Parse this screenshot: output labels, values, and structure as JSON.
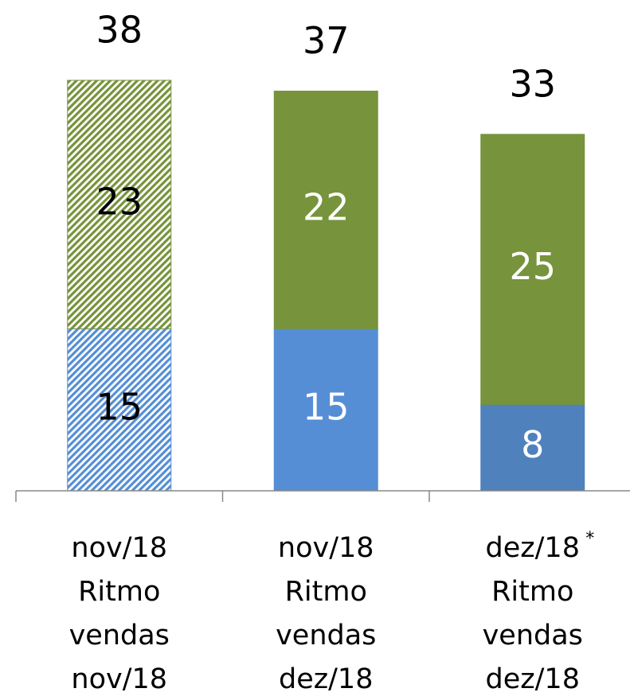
{
  "chart_data": {
    "type": "stacked_bar",
    "categories": [
      [
        "nov/18",
        "Ritmo",
        "vendas",
        "nov/18"
      ],
      [
        "nov/18",
        "Ritmo",
        "vendas",
        "dez/18"
      ],
      [
        "dez/18",
        "Ritmo",
        "vendas",
        "dez/18"
      ]
    ],
    "category_marks": [
      null,
      null,
      "*"
    ],
    "series": [
      {
        "colors": [
          "#558ed5",
          "#558ed5",
          "#4f81bd"
        ],
        "values": [
          15,
          15,
          8
        ]
      },
      {
        "colors": [
          "#77933c",
          "#77933c",
          "#77933c"
        ],
        "values": [
          23,
          22,
          25
        ]
      }
    ],
    "totals": [
      38,
      37,
      33
    ],
    "patterns": [
      "hatch",
      "solid",
      "solid"
    ],
    "label_colors": [
      "#000000",
      "#ffffff",
      "#ffffff"
    ],
    "ylim": [
      0,
      40
    ]
  }
}
